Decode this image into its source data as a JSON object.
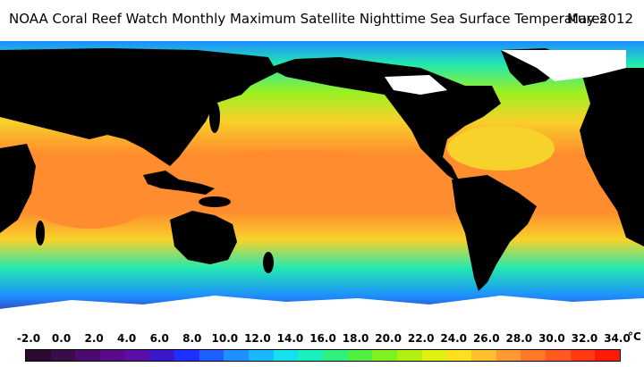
{
  "header": {
    "title": "NOAA Coral Reef Watch Monthly Maximum Satellite Nighttime Sea Surface Temperatures",
    "date": "May 2012"
  },
  "scale": {
    "labels": [
      "-2.0",
      "0.0",
      "2.0",
      "4.0",
      "6.0",
      "8.0",
      "10.0",
      "12.0",
      "14.0",
      "16.0",
      "18.0",
      "20.0",
      "22.0",
      "24.0",
      "26.0",
      "28.0",
      "30.0",
      "32.0",
      "34.0"
    ],
    "unit": "°C",
    "colors": [
      "#2a0a2e",
      "#3a0c4a",
      "#4b0a6e",
      "#5a0a8c",
      "#5a10a8",
      "#3a18c8",
      "#1e30ff",
      "#1e60ff",
      "#1e90ff",
      "#18b8ff",
      "#14e0f0",
      "#18f0c0",
      "#30f080",
      "#50f040",
      "#80f020",
      "#b0f010",
      "#e0f010",
      "#ffe020",
      "#ffc030",
      "#ff9a30",
      "#ff7a28",
      "#ff5a20",
      "#ff3a10",
      "#ff1a08"
    ]
  },
  "map": {
    "colors": {
      "land": "#000000",
      "ice": "#ffffff",
      "tropical": "#ff8c2e",
      "warm": "#f7d22a",
      "mild": "#9bf022",
      "temperate": "#22e8b0",
      "cool": "#1e8cff",
      "cold": "#3a1cc8",
      "polar": "#4b0a7a"
    }
  }
}
